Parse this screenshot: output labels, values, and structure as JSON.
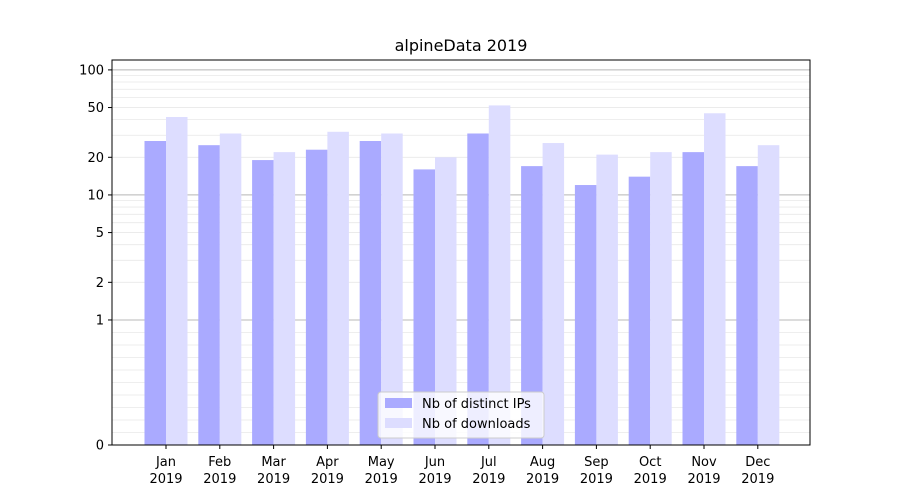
{
  "chart_data": {
    "type": "bar",
    "title": "alpineData 2019",
    "xlabel": "",
    "ylabel": "",
    "yscale": "symlog",
    "ylim": [
      0,
      120
    ],
    "yticks": [
      0,
      1,
      2,
      5,
      10,
      20,
      50,
      100
    ],
    "categories": [
      {
        "month": "Jan",
        "year": "2019"
      },
      {
        "month": "Feb",
        "year": "2019"
      },
      {
        "month": "Mar",
        "year": "2019"
      },
      {
        "month": "Apr",
        "year": "2019"
      },
      {
        "month": "May",
        "year": "2019"
      },
      {
        "month": "Jun",
        "year": "2019"
      },
      {
        "month": "Jul",
        "year": "2019"
      },
      {
        "month": "Aug",
        "year": "2019"
      },
      {
        "month": "Sep",
        "year": "2019"
      },
      {
        "month": "Oct",
        "year": "2019"
      },
      {
        "month": "Nov",
        "year": "2019"
      },
      {
        "month": "Dec",
        "year": "2019"
      }
    ],
    "series": [
      {
        "name": "Nb of distinct IPs",
        "color": "#aaaaff",
        "values": [
          27,
          25,
          19,
          23,
          27,
          16,
          31,
          17,
          12,
          14,
          22,
          17
        ]
      },
      {
        "name": "Nb of downloads",
        "color": "#ddddff",
        "values": [
          42,
          31,
          22,
          32,
          31,
          20,
          52,
          26,
          21,
          22,
          45,
          25
        ]
      }
    ],
    "grid": true,
    "legend": "bottom-center"
  }
}
